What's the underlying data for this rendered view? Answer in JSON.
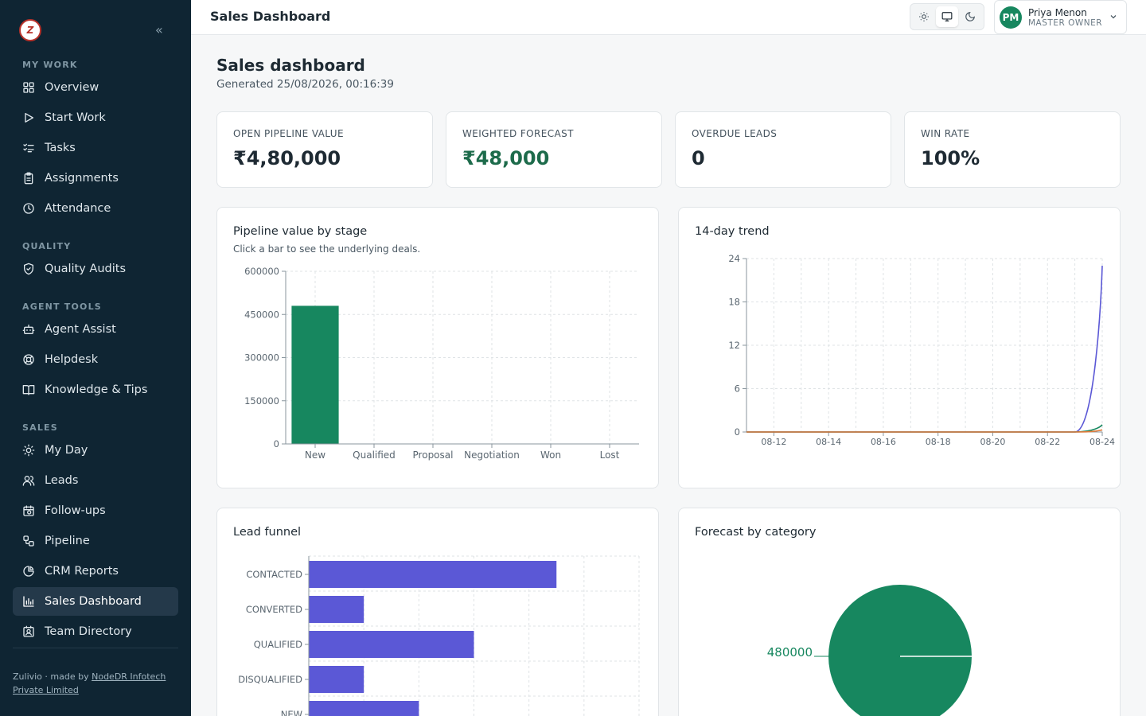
{
  "sidebar": {
    "logo_text": "Z",
    "sections": [
      {
        "title": "MY WORK",
        "items": [
          {
            "label": "Overview",
            "icon": "grid-icon"
          },
          {
            "label": "Start Work",
            "icon": "play-icon"
          },
          {
            "label": "Tasks",
            "icon": "checklist-icon"
          },
          {
            "label": "Assignments",
            "icon": "clipboard-icon"
          },
          {
            "label": "Attendance",
            "icon": "clock-icon"
          }
        ]
      },
      {
        "title": "QUALITY",
        "items": [
          {
            "label": "Quality Audits",
            "icon": "shield-icon"
          }
        ]
      },
      {
        "title": "AGENT TOOLS",
        "items": [
          {
            "label": "Agent Assist",
            "icon": "bot-icon"
          },
          {
            "label": "Helpdesk",
            "icon": "lifebuoy-icon"
          },
          {
            "label": "Knowledge & Tips",
            "icon": "book-icon"
          }
        ]
      },
      {
        "title": "SALES",
        "items": [
          {
            "label": "My Day",
            "icon": "sun-icon"
          },
          {
            "label": "Leads",
            "icon": "users-icon"
          },
          {
            "label": "Follow-ups",
            "icon": "calendar-clock-icon"
          },
          {
            "label": "Pipeline",
            "icon": "workflow-icon"
          },
          {
            "label": "CRM Reports",
            "icon": "pie-icon"
          },
          {
            "label": "Sales Dashboard",
            "icon": "bar-chart-icon",
            "active": true
          },
          {
            "label": "Team Directory",
            "icon": "contact-icon"
          }
        ]
      }
    ],
    "footer_prefix": "Zulivio · made by ",
    "footer_link": "NodeDR Infotech Private Limited"
  },
  "topbar": {
    "title": "Sales Dashboard",
    "user_name": "Priya Menon",
    "user_role": "MASTER OWNER",
    "user_initials": "PM"
  },
  "page": {
    "title": "Sales dashboard",
    "generated": "Generated 25/08/2026, 00:16:39"
  },
  "kpis": [
    {
      "label": "OPEN PIPELINE VALUE",
      "value": "₹4,80,000",
      "accent": false
    },
    {
      "label": "WEIGHTED FORECAST",
      "value": "₹48,000",
      "accent": true
    },
    {
      "label": "OVERDUE LEADS",
      "value": "0",
      "accent": false
    },
    {
      "label": "WIN RATE",
      "value": "100%",
      "accent": false
    }
  ],
  "cards": {
    "pipeline": {
      "title": "Pipeline value by stage",
      "subtitle": "Click a bar to see the underlying deals."
    },
    "trend": {
      "title": "14-day trend"
    },
    "funnel": {
      "title": "Lead funnel"
    },
    "forecast": {
      "title": "Forecast by category"
    }
  },
  "colors": {
    "green": "#17875f",
    "purple": "#5b58d6",
    "orange": "#e07b3a"
  },
  "chart_data": [
    {
      "type": "bar",
      "categories": [
        "New",
        "Qualified",
        "Proposal",
        "Negotiation",
        "Won",
        "Lost"
      ],
      "values": [
        480000,
        0,
        0,
        0,
        0,
        0
      ],
      "yticks": [
        0,
        150000,
        300000,
        450000,
        600000
      ],
      "ylim": [
        0,
        600000
      ]
    },
    {
      "type": "line",
      "x": [
        "08-11",
        "08-12",
        "08-13",
        "08-14",
        "08-15",
        "08-16",
        "08-17",
        "08-18",
        "08-19",
        "08-20",
        "08-21",
        "08-22",
        "08-23",
        "08-24"
      ],
      "xticks": [
        "08-12",
        "08-14",
        "08-16",
        "08-18",
        "08-20",
        "08-22",
        "08-24"
      ],
      "yticks": [
        0,
        6,
        12,
        18,
        24
      ],
      "ylim": [
        0,
        24
      ],
      "series": [
        {
          "values": [
            0,
            0,
            0,
            0,
            0,
            0,
            0,
            0,
            0,
            0,
            0,
            0,
            0,
            23
          ],
          "color": "#5b58d6"
        },
        {
          "values": [
            0,
            0,
            0,
            0,
            0,
            0,
            0,
            0,
            0,
            0,
            0,
            0,
            0,
            1
          ],
          "color": "#17875f"
        },
        {
          "values": [
            0,
            0,
            0,
            0,
            0,
            0,
            0,
            0,
            0,
            0,
            0,
            0,
            0,
            0.3
          ],
          "color": "#e07b3a"
        }
      ]
    },
    {
      "type": "bar",
      "orientation": "horizontal",
      "categories": [
        "CONTACTED",
        "CONVERTED",
        "QUALIFIED",
        "DISQUALIFIED",
        "NEW"
      ],
      "values": [
        9,
        2,
        6,
        2,
        4
      ],
      "xlim": [
        0,
        12
      ]
    },
    {
      "type": "pie",
      "labels": [
        "480000"
      ],
      "values": [
        480000
      ],
      "colors": [
        "#17875f"
      ]
    }
  ]
}
